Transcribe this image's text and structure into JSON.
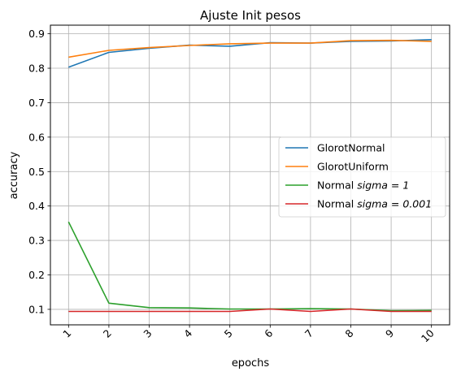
{
  "chart_data": {
    "type": "line",
    "title": "Ajuste Init pesos",
    "xlabel": "epochs",
    "ylabel": "accuracy",
    "x": [
      1,
      2,
      3,
      4,
      5,
      6,
      7,
      8,
      9,
      10
    ],
    "xticklabels": [
      "1",
      "2",
      "3",
      "4",
      "5",
      "6",
      "7",
      "8",
      "9",
      "10"
    ],
    "yticks": [
      0.1,
      0.2,
      0.3,
      0.4,
      0.5,
      0.6,
      0.7,
      0.8,
      0.9
    ],
    "yticklabels": [
      "0.1",
      "0.2",
      "0.3",
      "0.4",
      "0.5",
      "0.6",
      "0.7",
      "0.8",
      "0.9"
    ],
    "ylim": [
      0.055,
      0.925
    ],
    "xlim": [
      0.55,
      10.45
    ],
    "grid": true,
    "legend_position": "center-right",
    "series": [
      {
        "name": "GlorotNormal",
        "legend_label": {
          "text": "GlorotNormal",
          "math": ""
        },
        "color": "#1f77b4",
        "values": [
          0.803,
          0.846,
          0.858,
          0.867,
          0.864,
          0.874,
          0.873,
          0.878,
          0.879,
          0.883
        ]
      },
      {
        "name": "GlorotUniform",
        "legend_label": {
          "text": "GlorotUniform",
          "math": ""
        },
        "color": "#ff7f0e",
        "values": [
          0.832,
          0.852,
          0.86,
          0.866,
          0.871,
          0.873,
          0.873,
          0.88,
          0.881,
          0.878
        ]
      },
      {
        "name": "Normal sigma=1",
        "legend_label": {
          "text": "Normal ",
          "math": "sigma = 1"
        },
        "color": "#2ca02c",
        "values": [
          0.354,
          0.118,
          0.105,
          0.104,
          0.101,
          0.101,
          0.102,
          0.101,
          0.096,
          0.097
        ]
      },
      {
        "name": "Normal sigma=0.001",
        "legend_label": {
          "text": "Normal ",
          "math": "sigma = 0.001"
        },
        "color": "#d62728",
        "values": [
          0.094,
          0.094,
          0.094,
          0.094,
          0.094,
          0.101,
          0.094,
          0.101,
          0.094,
          0.094
        ]
      }
    ]
  }
}
